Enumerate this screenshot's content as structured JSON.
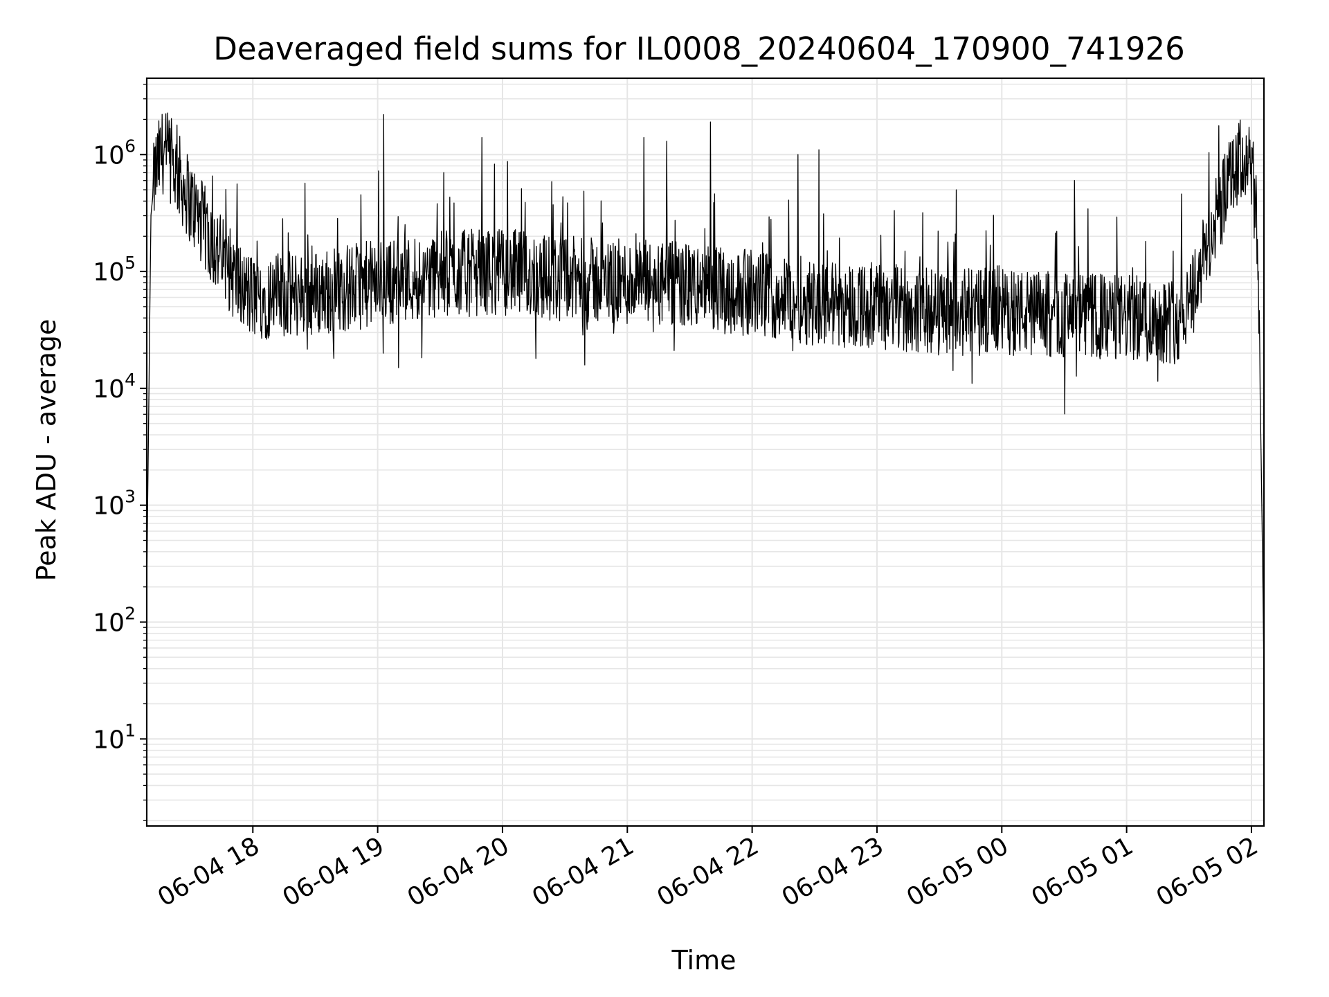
{
  "chart_data": {
    "type": "line",
    "title": "Deaveraged field sums for IL0008_20240604_170900_741926",
    "xlabel": "Time",
    "ylabel": "Peak ADU - average",
    "yscale": "log",
    "grid": true,
    "line_color": "#000000",
    "grid_color": "#e6e6e6",
    "x_range": [
      "2024-06-04 17:09",
      "2024-06-05 02:06"
    ],
    "ylim": [
      1.8,
      4500000
    ],
    "x_ticks": [
      {
        "t": "2024-06-04 18:00",
        "label": "06-04 18"
      },
      {
        "t": "2024-06-04 19:00",
        "label": "06-04 19"
      },
      {
        "t": "2024-06-04 20:00",
        "label": "06-04 20"
      },
      {
        "t": "2024-06-04 21:00",
        "label": "06-04 21"
      },
      {
        "t": "2024-06-04 22:00",
        "label": "06-04 22"
      },
      {
        "t": "2024-06-04 23:00",
        "label": "06-04 23"
      },
      {
        "t": "2024-06-05 00:00",
        "label": "06-05 00"
      },
      {
        "t": "2024-06-05 01:00",
        "label": "06-05 01"
      },
      {
        "t": "2024-06-05 02:00",
        "label": "06-05 02"
      }
    ],
    "y_ticks": [
      {
        "value": 10,
        "base": "10",
        "exp": "1"
      },
      {
        "value": 100,
        "base": "10",
        "exp": "2"
      },
      {
        "value": 1000,
        "base": "10",
        "exp": "3"
      },
      {
        "value": 10000,
        "base": "10",
        "exp": "4"
      },
      {
        "value": 100000,
        "base": "10",
        "exp": "5"
      },
      {
        "value": 1000000,
        "base": "10",
        "exp": "6"
      }
    ],
    "series": [
      {
        "points": [
          [
            "2024-06-04 17:09",
            200
          ],
          [
            "2024-06-04 17:11",
            300000
          ],
          [
            "2024-06-04 17:13",
            700000
          ],
          [
            "2024-06-04 17:17",
            1100000
          ],
          [
            "2024-06-04 17:22",
            800000
          ],
          [
            "2024-06-04 17:30",
            400000
          ],
          [
            "2024-06-04 17:40",
            180000
          ],
          [
            "2024-06-04 17:55",
            70000
          ],
          [
            "2024-06-04 18:00",
            60000
          ],
          [
            "2024-06-04 18:30",
            65000
          ],
          [
            "2024-06-04 19:00",
            80000
          ],
          [
            "2024-06-04 19:30",
            95000
          ],
          [
            "2024-06-04 20:00",
            100000
          ],
          [
            "2024-06-04 20:30",
            85000
          ],
          [
            "2024-06-04 21:00",
            80000
          ],
          [
            "2024-06-04 21:30",
            75000
          ],
          [
            "2024-06-04 22:00",
            65000
          ],
          [
            "2024-06-04 22:30",
            55000
          ],
          [
            "2024-06-04 23:00",
            50000
          ],
          [
            "2024-06-04 23:30",
            45000
          ],
          [
            "2024-06-05 00:00",
            45000
          ],
          [
            "2024-06-05 00:30",
            42000
          ],
          [
            "2024-06-05 01:00",
            40000
          ],
          [
            "2024-06-05 01:25",
            38000
          ],
          [
            "2024-06-05 01:35",
            100000
          ],
          [
            "2024-06-05 01:45",
            350000
          ],
          [
            "2024-06-05 01:55",
            900000
          ],
          [
            "2024-06-05 02:00",
            800000
          ],
          [
            "2024-06-05 02:03",
            200000
          ],
          [
            "2024-06-05 02:05",
            1000
          ],
          [
            "2024-06-05 02:06",
            40
          ]
        ],
        "spikes": [
          [
            "2024-06-04 18:25",
            570000
          ],
          [
            "2024-06-04 19:03",
            2200000
          ],
          [
            "2024-06-04 19:10",
            15000
          ],
          [
            "2024-06-04 19:50",
            1400000
          ],
          [
            "2024-06-04 20:16",
            18000
          ],
          [
            "2024-06-04 21:08",
            1400000
          ],
          [
            "2024-06-04 21:19",
            1300000
          ],
          [
            "2024-06-04 21:40",
            1900000
          ],
          [
            "2024-06-04 22:22",
            1000000
          ],
          [
            "2024-06-04 22:32",
            1100000
          ],
          [
            "2024-06-05 00:35",
            600000
          ],
          [
            "2024-06-04 23:38",
            500000
          ]
        ]
      }
    ]
  }
}
